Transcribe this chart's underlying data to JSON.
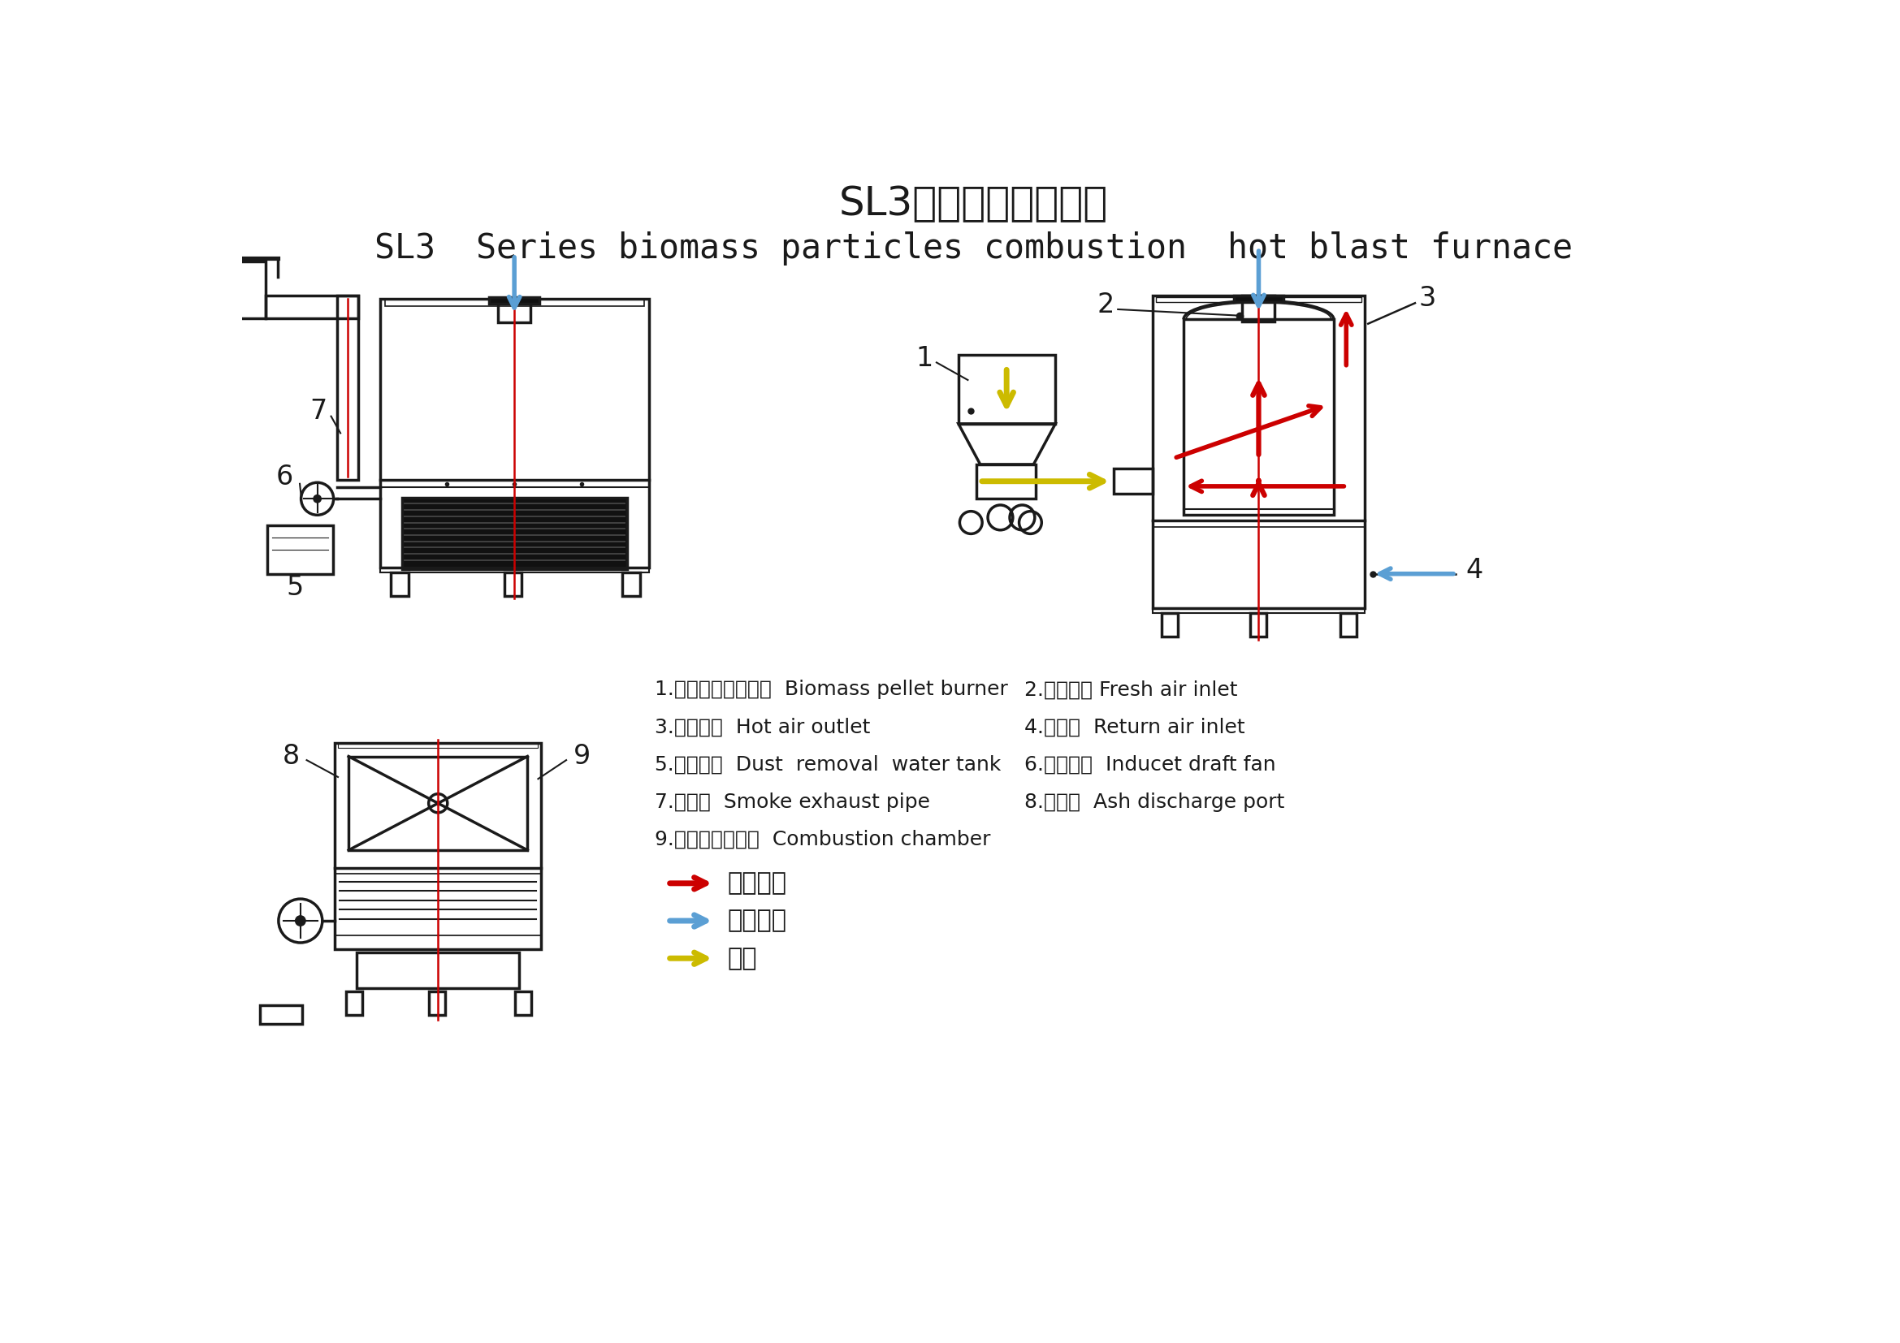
{
  "title_cn": "SL3系列生物质热风炉",
  "title_en": "SL3  Series biomass particles combustion  hot blast furnace",
  "bg_color": "#ffffff",
  "line_color": "#1a1a1a",
  "red_color": "#cc0000",
  "blue_color": "#5b9fd4",
  "yellow_color": "#ccbb00",
  "labels_left": [
    "1.生物质颗粒燃烧机  Biomass pellet burner",
    "3.热风出口  Hot air outlet",
    "5.除尘水筱  Dust  removal  water tank",
    "7.排烟管  Smoke exhaust pipe",
    "9.燃烧室（炉膛）  Combustion chamber"
  ],
  "labels_right": [
    "2.新风进口 Fresh air inlet",
    "4.回风口  Return air inlet",
    "6.引烟风机  Inducet draft fan",
    "8.掘灰口  Ash discharge port",
    ""
  ],
  "legend": [
    {
      "label": "高温空气",
      "color": "#cc0000"
    },
    {
      "label": "低温空气",
      "color": "#5b9fd4"
    },
    {
      "label": "燃料",
      "color": "#ccbb00"
    }
  ],
  "num1": "1",
  "num2": "2",
  "num3": "3",
  "num4": "4",
  "num5": "5",
  "num6": "6",
  "num7": "7",
  "num8": "8",
  "num9": "9"
}
